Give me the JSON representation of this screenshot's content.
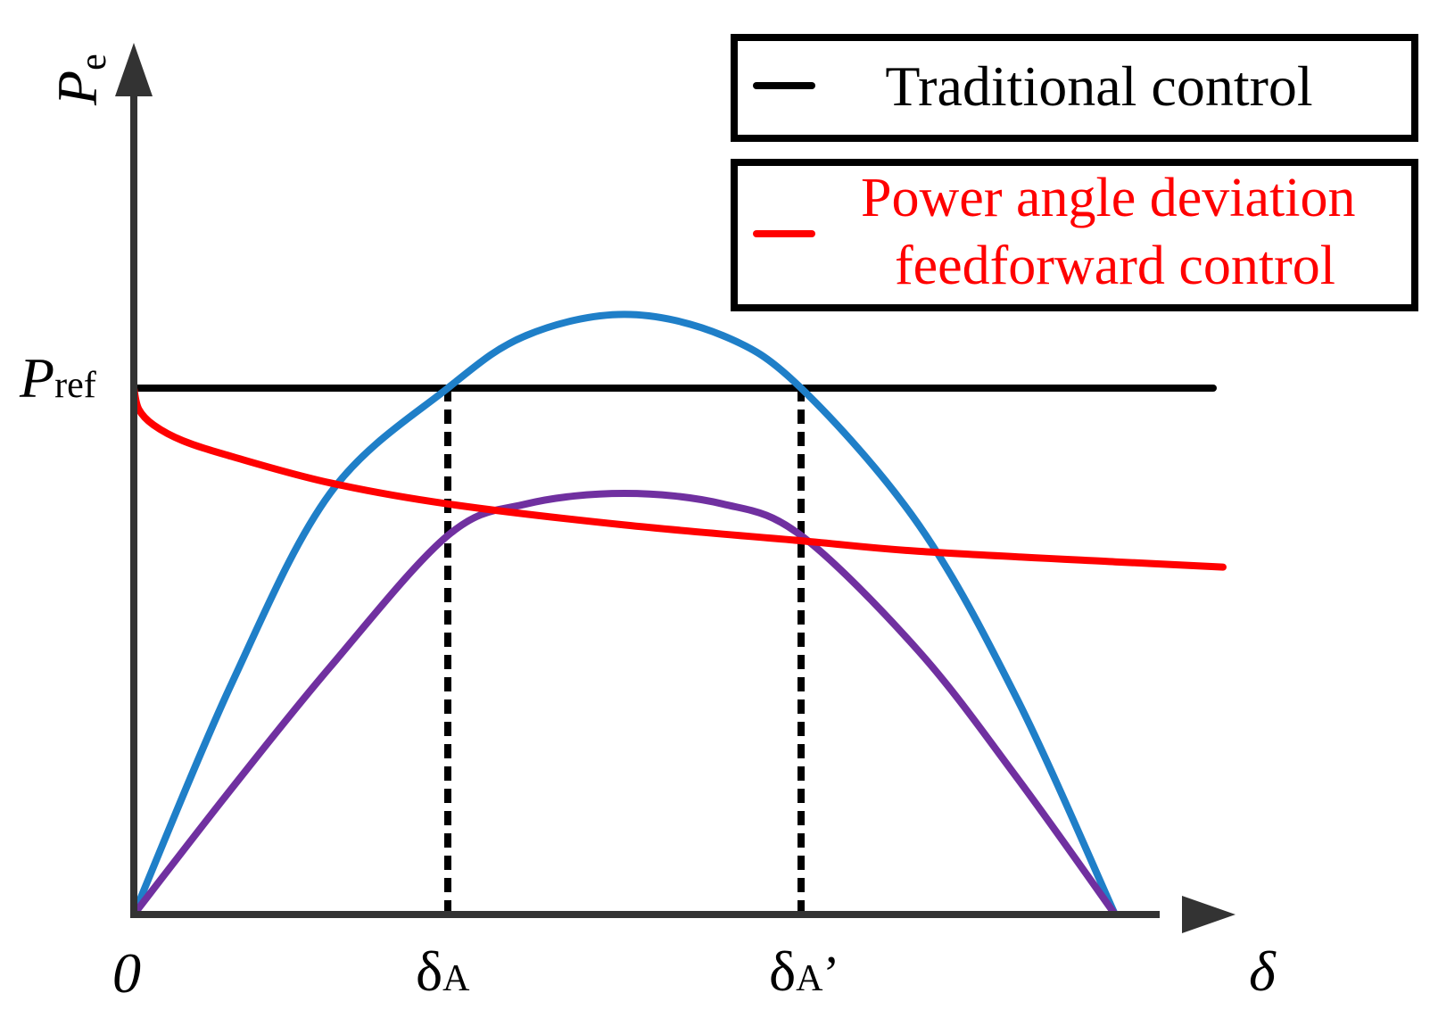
{
  "chart_data": {
    "type": "line",
    "axes": {
      "y_label_main": "P",
      "y_label_sub": "e",
      "x_label": "δ",
      "origin_label": "0",
      "y_mark_main": "P",
      "y_mark_sub": "ref",
      "x_marks": [
        {
          "main": "δ",
          "sub": "A",
          "suffix": "",
          "x": 0.32
        },
        {
          "main": "δ",
          "sub": "A",
          "suffix": "’",
          "x": 0.68
        }
      ],
      "xlim": [
        0,
        1.12
      ],
      "ylim": [
        0,
        1.34
      ]
    },
    "legend": {
      "placement": "top-right",
      "entries": [
        {
          "label_lines": [
            "Traditional control"
          ],
          "color": "#000000",
          "text_color": "#000000"
        },
        {
          "label_lines": [
            "Power angle deviation",
            "feedforward control"
          ],
          "color": "#ff0000",
          "text_color": "#ff0000"
        }
      ]
    },
    "series": [
      {
        "color": "#000000",
        "x": [
          0.0,
          1.1
        ],
        "y": [
          1.0,
          1.0
        ]
      },
      {
        "color": "#ff0000",
        "x": [
          0.0,
          0.005,
          0.02,
          0.05,
          0.1,
          0.2,
          0.32,
          0.5,
          0.68,
          0.8,
          1.0,
          1.11
        ],
        "y": [
          1.0,
          0.96,
          0.93,
          0.9,
          0.87,
          0.82,
          0.78,
          0.74,
          0.71,
          0.69,
          0.67,
          0.66
        ]
      },
      {
        "color": "#1f7fc8",
        "x": [
          0.0,
          0.1,
          0.2,
          0.32,
          0.4,
          0.5,
          0.6,
          0.68,
          0.8,
          0.9,
          1.0
        ],
        "y": [
          0.0,
          0.44,
          0.8,
          1.0,
          1.1,
          1.14,
          1.1,
          1.0,
          0.74,
          0.41,
          0.0
        ]
      },
      {
        "color": "#7030a0",
        "x": [
          0.0,
          0.1,
          0.2,
          0.32,
          0.4,
          0.5,
          0.6,
          0.68,
          0.8,
          0.9,
          1.0
        ],
        "y": [
          0.0,
          0.24,
          0.47,
          0.72,
          0.78,
          0.8,
          0.78,
          0.72,
          0.5,
          0.26,
          0.0
        ]
      }
    ],
    "guides": [
      {
        "style": "dashed",
        "color": "#000000",
        "x": 0.32,
        "y_from": 0,
        "y_to": 1.0
      },
      {
        "style": "dashed",
        "color": "#000000",
        "x": 0.68,
        "y_from": 0,
        "y_to": 1.0
      }
    ]
  }
}
